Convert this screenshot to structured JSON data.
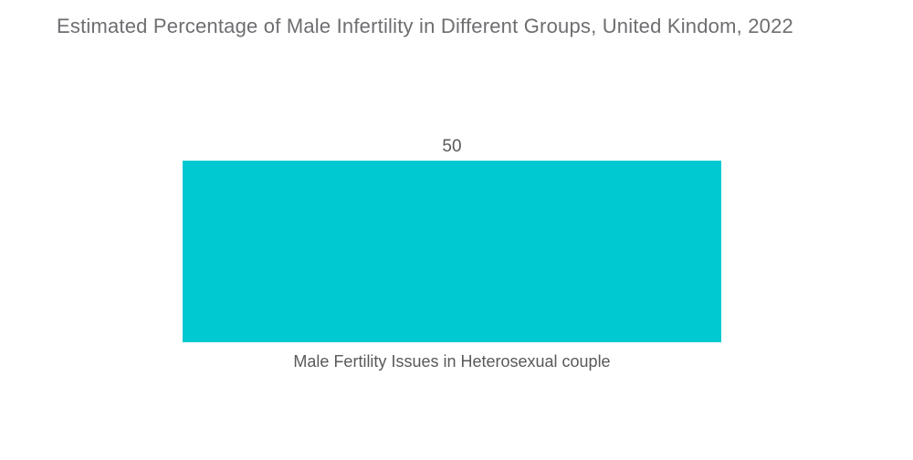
{
  "chart_data": {
    "type": "bar",
    "title": "Estimated Percentage of Male Infertility in Different Groups, United Kindom, 2022",
    "categories": [
      "Male Fertility Issues in Heterosexual couple"
    ],
    "values": [
      50
    ],
    "series": [
      {
        "name": "Estimated Percentage of Male Infertility",
        "values": [
          50
        ]
      }
    ],
    "xlabel": "",
    "ylabel": "",
    "ylim": [
      0,
      50
    ],
    "grid": false,
    "legend_position": "none",
    "value_labels_shown": true,
    "orientation": "vertical",
    "colors": {
      "bar": "#00c9d1",
      "title_text": "#6d6e71",
      "label_text": "#58595b",
      "background": "#ffffff"
    }
  }
}
